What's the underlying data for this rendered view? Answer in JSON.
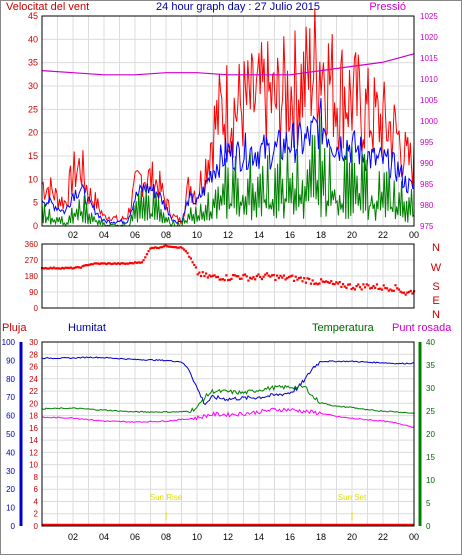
{
  "title": "24 hour graph day : 27 Julio 2015",
  "chart_data": [
    {
      "type": "line",
      "panel": "wind-pressure",
      "left_label": "Velocitat del vent",
      "right_label": "Pressió",
      "x_ticks": [
        "02",
        "04",
        "06",
        "08",
        "10",
        "12",
        "14",
        "16",
        "18",
        "20",
        "22",
        "00"
      ],
      "x_range_hours": [
        0,
        24
      ],
      "y_left_ticks": [
        "0",
        "5",
        "10",
        "15",
        "20",
        "25",
        "30",
        "35",
        "40",
        "45"
      ],
      "y_left_range": [
        0,
        45
      ],
      "y_right_ticks": [
        "975",
        "980",
        "985",
        "990",
        "995",
        "1000",
        "1005",
        "1010",
        "1015",
        "1020",
        "1025"
      ],
      "y_right_range": [
        975,
        1025
      ],
      "grid": true,
      "series": [
        {
          "color": "#ff0000",
          "x": [
            0,
            0.5,
            1,
            1.5,
            2,
            2.5,
            3,
            3.5,
            4,
            4.5,
            5,
            5.5,
            6,
            6.5,
            7,
            7.5,
            8,
            8.5,
            9,
            9.5,
            10,
            10.5,
            11,
            11.5,
            12,
            12.5,
            13,
            13.5,
            14,
            14.5,
            15,
            15.5,
            16,
            16.5,
            17,
            17.5,
            18,
            18.5,
            19,
            19.5,
            20,
            20.5,
            21,
            21.5,
            22,
            22.5,
            23,
            23.5,
            24
          ],
          "y": [
            9,
            8,
            6,
            5,
            11,
            13,
            7,
            5,
            2,
            2,
            1,
            2,
            8,
            11,
            10,
            9,
            5,
            2,
            1,
            9,
            7,
            12,
            20,
            24,
            26,
            25,
            26,
            26,
            27,
            28,
            26,
            28,
            29,
            30,
            31,
            34,
            36,
            32,
            28,
            29,
            27,
            26,
            24,
            23,
            22,
            21,
            19,
            14,
            13
          ]
        },
        {
          "color": "#0000ff",
          "x": [
            0,
            0.5,
            1,
            1.5,
            2,
            2.5,
            3,
            3.5,
            4,
            4.5,
            5,
            5.5,
            6,
            6.5,
            7,
            7.5,
            8,
            8.5,
            9,
            9.5,
            10,
            10.5,
            11,
            11.5,
            12,
            12.5,
            13,
            13.5,
            14,
            14.5,
            15,
            15.5,
            16,
            16.5,
            17,
            17.5,
            18,
            18.5,
            19,
            19.5,
            20,
            20.5,
            21,
            21.5,
            22,
            22.5,
            23,
            23.5,
            24
          ],
          "y": [
            6,
            5,
            4,
            3,
            7,
            8,
            5,
            3,
            1,
            1,
            1,
            1,
            6,
            8,
            8,
            7,
            4,
            1,
            1,
            6,
            5,
            8,
            12,
            14,
            16,
            15,
            16,
            16,
            16,
            16,
            16,
            17,
            18,
            18,
            18,
            20,
            22,
            20,
            17,
            18,
            17,
            16,
            15,
            14,
            14,
            13,
            12,
            9,
            8
          ]
        },
        {
          "color": "#008000",
          "x": [
            0,
            0.5,
            1,
            1.5,
            2,
            2.5,
            3,
            3.5,
            4,
            4.5,
            5,
            5.5,
            6,
            6.5,
            7,
            7.5,
            8,
            8.5,
            9,
            9.5,
            10,
            10.5,
            11,
            11.5,
            12,
            12.5,
            13,
            13.5,
            14,
            14.5,
            15,
            15.5,
            16,
            16.5,
            17,
            17.5,
            18,
            18.5,
            19,
            19.5,
            20,
            20.5,
            21,
            21.5,
            22,
            22.5,
            23,
            23.5,
            24
          ],
          "y": [
            4,
            3,
            2,
            1,
            4,
            5,
            3,
            2,
            0,
            0,
            0,
            0,
            4,
            6,
            5,
            5,
            2,
            0,
            0,
            4,
            3,
            5,
            8,
            9,
            10,
            10,
            10,
            10,
            11,
            11,
            10,
            11,
            12,
            12,
            12,
            14,
            15,
            13,
            11,
            12,
            11,
            10,
            10,
            9,
            9,
            8,
            7,
            6,
            5
          ]
        },
        {
          "color": "#cc00cc",
          "axis": "right",
          "x": [
            0,
            2,
            4,
            6,
            8,
            10,
            12,
            14,
            16,
            18,
            20,
            22,
            24
          ],
          "y": [
            1012,
            1011.5,
            1011,
            1011,
            1011.5,
            1011.5,
            1011,
            1011,
            1011,
            1012,
            1013,
            1014,
            1016
          ]
        }
      ]
    },
    {
      "type": "scatter",
      "panel": "wind-direction",
      "y_ticks": [
        "360",
        "270",
        "180",
        "90",
        "0"
      ],
      "y_range": [
        0,
        360
      ],
      "compass_labels": [
        "N",
        "W",
        "S",
        "E",
        "N"
      ],
      "x_range_hours": [
        0,
        24
      ],
      "grid": true,
      "series": [
        {
          "color": "#ff0000",
          "x": [
            0,
            0.5,
            1,
            1.5,
            2,
            2.5,
            3,
            3.5,
            4,
            4.5,
            5,
            5.5,
            6,
            6.5,
            7,
            7.5,
            8,
            8.5,
            9,
            9.3,
            9.6,
            10,
            10.5,
            11,
            11.5,
            12,
            12.5,
            13,
            13.5,
            14,
            14.5,
            15,
            15.5,
            16,
            16.5,
            17,
            17.5,
            18,
            18.5,
            19,
            19.5,
            20,
            20.5,
            21,
            21.5,
            22,
            22.5,
            23,
            23.5,
            24
          ],
          "y": [
            225,
            225,
            225,
            225,
            225,
            230,
            245,
            250,
            250,
            250,
            250,
            250,
            255,
            260,
            340,
            340,
            350,
            345,
            340,
            320,
            270,
            200,
            180,
            175,
            175,
            170,
            180,
            175,
            170,
            175,
            180,
            175,
            170,
            170,
            165,
            160,
            150,
            145,
            140,
            130,
            130,
            120,
            120,
            125,
            120,
            115,
            115,
            110,
            80,
            100
          ]
        }
      ]
    },
    {
      "type": "line",
      "panel": "humidity-temperature",
      "labels": [
        "Pluja",
        "Humitat",
        "Temperatura",
        "Punt rosada"
      ],
      "x_ticks": [
        "02",
        "04",
        "06",
        "08",
        "10",
        "12",
        "14",
        "16",
        "18",
        "20",
        "22",
        "00"
      ],
      "x_range_hours": [
        0,
        24
      ],
      "y_rain_ticks": [
        "0",
        "2",
        "4",
        "6",
        "8",
        "10",
        "12",
        "14",
        "16",
        "18",
        "20",
        "22",
        "24",
        "26",
        "28",
        "30"
      ],
      "y_humidity_ticks": [
        "0",
        "10",
        "20",
        "30",
        "40",
        "50",
        "60",
        "70",
        "80",
        "90",
        "100"
      ],
      "y_temp_ticks": [
        "0",
        "5",
        "10",
        "15",
        "20",
        "25",
        "30",
        "35",
        "40"
      ],
      "y_temp_range": [
        0,
        40
      ],
      "annotations": [
        "Sun Rise",
        "Sun Set"
      ],
      "annotation_x_hours": [
        8,
        20
      ],
      "grid": true,
      "series": [
        {
          "color": "#0000cc",
          "x": [
            0,
            1,
            2,
            3,
            4,
            5,
            6,
            7,
            8,
            9,
            9.5,
            10,
            10.5,
            11,
            12,
            13,
            14,
            15,
            16,
            16.5,
            17,
            17.5,
            18,
            19,
            20,
            21,
            22,
            23,
            24
          ],
          "y": [
            36.5,
            36.5,
            36.5,
            36.7,
            36.6,
            36.4,
            36.2,
            36.1,
            36,
            35.7,
            34,
            30,
            26.5,
            28,
            27.6,
            27.8,
            28,
            28.4,
            29,
            30,
            32,
            34.5,
            35.8,
            35.8,
            35.8,
            35.6,
            35.5,
            35.3,
            35.4
          ]
        },
        {
          "color": "#008000",
          "x": [
            0,
            2,
            4,
            6,
            8,
            9,
            9.5,
            10,
            10.5,
            11,
            12,
            13,
            14,
            15,
            16,
            17,
            17.5,
            18,
            19,
            20,
            21,
            22,
            23,
            24
          ],
          "y": [
            25.5,
            25.6,
            25.2,
            24.8,
            24.8,
            24.8,
            25,
            25.7,
            28,
            29.3,
            29.2,
            28.9,
            29.6,
            30.1,
            30.2,
            30.2,
            28,
            26.8,
            26,
            25.8,
            25.2,
            25,
            24.8,
            24.5
          ]
        },
        {
          "color": "#ff00ff",
          "x": [
            0,
            2,
            4,
            6,
            8,
            10,
            11,
            12,
            13,
            14,
            15,
            16,
            17,
            18,
            19,
            20,
            21,
            22,
            23,
            24
          ],
          "y": [
            23.6,
            23.5,
            22.8,
            22.6,
            22.8,
            23.5,
            24.3,
            24.2,
            24.4,
            24.8,
            25.3,
            25.3,
            24.9,
            24.5,
            23.8,
            23.4,
            23.1,
            22.8,
            22.3,
            21.5
          ]
        },
        {
          "color": "#ff0000",
          "axis": "rain",
          "x": [
            0,
            24
          ],
          "y": [
            0,
            0
          ]
        }
      ]
    }
  ],
  "colors": {
    "red": "#ff0000",
    "blue": "#0000ff",
    "green": "#008000",
    "magenta": "#cc00cc",
    "sun": "#dddd00",
    "grid": "#dcdcdc"
  }
}
